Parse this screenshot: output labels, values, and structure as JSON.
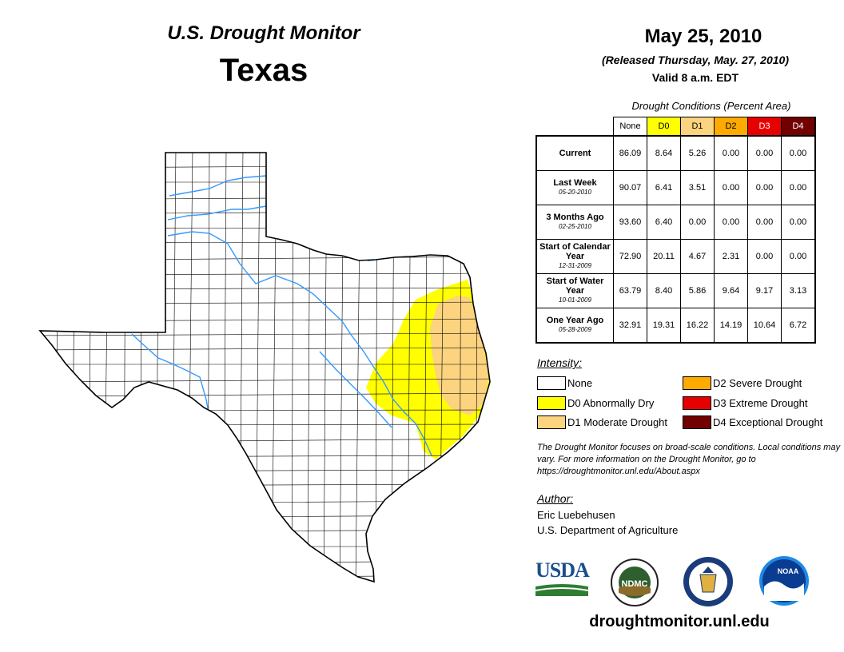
{
  "header": {
    "title": "U.S. Drought Monitor",
    "region": "Texas",
    "date": "May 25, 2010",
    "released": "(Released Thursday, May. 27, 2010)",
    "valid": "Valid 8 a.m. EDT"
  },
  "table": {
    "title": "Drought Conditions (Percent Area)",
    "columns": [
      "None",
      "D0",
      "D1",
      "D2",
      "D3",
      "D4"
    ],
    "column_colors": [
      "#ffffff",
      "#ffff00",
      "#fcd37f",
      "#ffaa00",
      "#e60000",
      "#730000"
    ],
    "rows": [
      {
        "label": "Current",
        "sub": "",
        "values": [
          "86.09",
          "8.64",
          "5.26",
          "0.00",
          "0.00",
          "0.00"
        ]
      },
      {
        "label": "Last Week",
        "sub": "05-20-2010",
        "values": [
          "90.07",
          "6.41",
          "3.51",
          "0.00",
          "0.00",
          "0.00"
        ]
      },
      {
        "label": "3 Months Ago",
        "sub": "02-25-2010",
        "values": [
          "93.60",
          "6.40",
          "0.00",
          "0.00",
          "0.00",
          "0.00"
        ]
      },
      {
        "label": "Start of Calendar Year",
        "sub": "12-31-2009",
        "values": [
          "72.90",
          "20.11",
          "4.67",
          "2.31",
          "0.00",
          "0.00"
        ]
      },
      {
        "label": "Start of Water Year",
        "sub": "10-01-2009",
        "values": [
          "63.79",
          "8.40",
          "5.86",
          "9.64",
          "9.17",
          "3.13"
        ]
      },
      {
        "label": "One Year Ago",
        "sub": "05-28-2009",
        "values": [
          "32.91",
          "19.31",
          "16.22",
          "14.19",
          "10.64",
          "6.72"
        ]
      }
    ]
  },
  "legend": {
    "title": "Intensity:",
    "items": [
      {
        "label": "None",
        "color": "#ffffff"
      },
      {
        "label": "D0 Abnormally Dry",
        "color": "#ffff00"
      },
      {
        "label": "D1 Moderate Drought",
        "color": "#fcd37f"
      },
      {
        "label": "D2 Severe Drought",
        "color": "#ffaa00"
      },
      {
        "label": "D3 Extreme Drought",
        "color": "#e60000"
      },
      {
        "label": "D4 Exceptional Drought",
        "color": "#730000"
      }
    ]
  },
  "note": "The Drought Monitor focuses on broad-scale conditions. Local conditions may vary. For more information on the Drought Monitor, go to https://droughtmonitor.unl.edu/About.aspx",
  "author": {
    "title": "Author:",
    "name": "Eric Luebehusen",
    "org": "U.S. Department of Agriculture"
  },
  "logos": {
    "usda": "USDA",
    "ndmc": "NDMC",
    "noaa": "NOAA"
  },
  "site": "droughtmonitor.unl.edu",
  "map": {
    "region": "Texas",
    "drought_areas": [
      "D0 Abnormally Dry",
      "D1 Moderate Drought"
    ],
    "water_color": "#3399ff"
  }
}
